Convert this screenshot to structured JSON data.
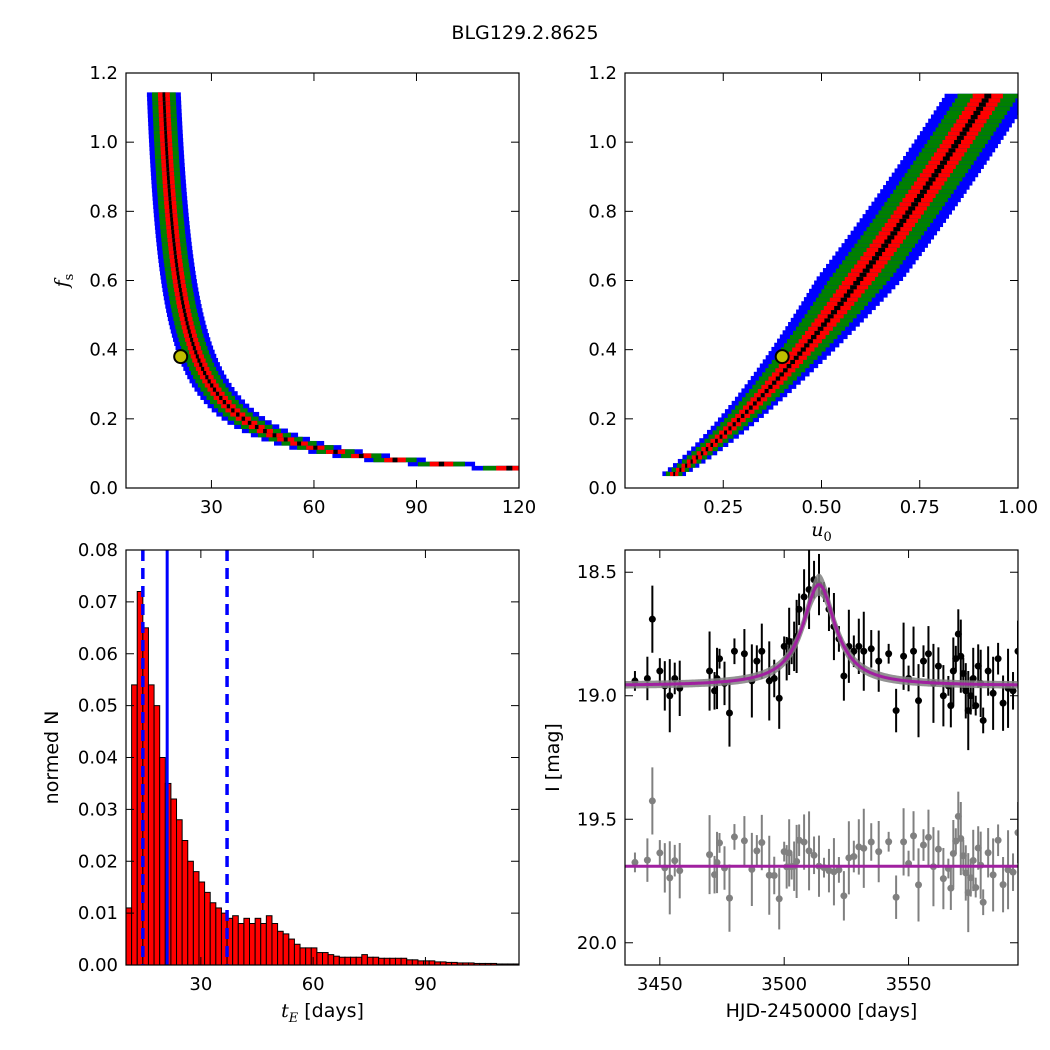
{
  "figure": {
    "title": "BLG129.2.8625"
  },
  "chart_data": [
    {
      "type": "heatmap",
      "panel": "fs_vs_tE",
      "xlabel": "",
      "ylabel": "f_s",
      "xlim": [
        5,
        120
      ],
      "ylim": [
        0.0,
        1.2
      ],
      "xticks": [
        30,
        60,
        90,
        120
      ],
      "yticks": [
        0.0,
        0.2,
        0.4,
        0.6,
        0.8,
        1.0,
        1.2
      ],
      "best_fit": {
        "x": 21,
        "y": 0.38
      },
      "colors": {
        "outer": "#0000ff",
        "mid": "#008000",
        "inner": "#ff0000",
        "core": "#000000",
        "marker": "#bfbf00"
      }
    },
    {
      "type": "heatmap",
      "panel": "fs_vs_u0",
      "xlabel": "u_0",
      "ylabel": "",
      "xlim": [
        0.0,
        1.0
      ],
      "ylim": [
        0.0,
        1.2
      ],
      "xticks": [
        0.25,
        0.5,
        0.75,
        1.0
      ],
      "xtick_labels": [
        "0.25",
        "0.50",
        "0.75",
        "1.00"
      ],
      "yticks": [
        0.0,
        0.2,
        0.4,
        0.6,
        0.8,
        1.0,
        1.2
      ],
      "best_fit": {
        "x": 0.4,
        "y": 0.38
      },
      "colors": {
        "outer": "#0000ff",
        "mid": "#008000",
        "inner": "#ff0000",
        "core": "#000000",
        "marker": "#bfbf00"
      }
    },
    {
      "type": "bar",
      "panel": "tE_histogram",
      "xlabel": "t_E  [days]",
      "ylabel": "normed N",
      "xlim": [
        10,
        115
      ],
      "ylim": [
        0.0,
        0.08
      ],
      "xticks": [
        30,
        60,
        90
      ],
      "yticks": [
        0.0,
        0.01,
        0.02,
        0.03,
        0.04,
        0.05,
        0.06,
        0.07,
        0.08
      ],
      "bin_start": 10,
      "bin_width": 1.5,
      "values": [
        0.011,
        0.054,
        0.072,
        0.065,
        0.054,
        0.05,
        0.04,
        0.035,
        0.032,
        0.028,
        0.024,
        0.02,
        0.018,
        0.016,
        0.014,
        0.012,
        0.011,
        0.01,
        0.009,
        0.0095,
        0.008,
        0.009,
        0.008,
        0.009,
        0.008,
        0.0095,
        0.008,
        0.0065,
        0.006,
        0.005,
        0.004,
        0.0033,
        0.0033,
        0.0033,
        0.0024,
        0.0024,
        0.002,
        0.0017,
        0.0015,
        0.0015,
        0.0015,
        0.0015,
        0.002,
        0.0015,
        0.0015,
        0.0013,
        0.0013,
        0.0013,
        0.0013,
        0.0013,
        0.001,
        0.001,
        0.0008,
        0.0008,
        0.0008,
        0.0006,
        0.0006,
        0.0005,
        0.0005,
        0.0004,
        0.0004,
        0.0004,
        0.0003,
        0.0003,
        0.0003,
        0.0003,
        0.0002,
        0.0002,
        0.0002,
        0.0002
      ],
      "median_line": 21,
      "dashed_lines": [
        14.5,
        37
      ],
      "colors": {
        "bar": "#ff0000",
        "edge": "#000000",
        "lines": "#0000ff"
      }
    },
    {
      "type": "scatter",
      "panel": "light_curve",
      "xlabel": "HJD-2450000 [days]",
      "ylabel": "I [mag]",
      "xlim": [
        3436,
        3594
      ],
      "ylim": [
        20.09,
        18.41
      ],
      "xticks": [
        3450,
        3500,
        3550
      ],
      "yticks": [
        18.5,
        19.0,
        19.5,
        20.0
      ],
      "yticklabels": [
        "18.5",
        "19.0",
        "19.5",
        "20.0"
      ],
      "model": {
        "t0": 3514,
        "baseline": 18.96,
        "peak": 18.55,
        "width": 8
      },
      "residual_offset": 0.73,
      "x": [
        3440,
        3445,
        3447,
        3450,
        3452,
        3454,
        3456,
        3458,
        3470,
        3472,
        3473,
        3474,
        3476,
        3478,
        3480,
        3484,
        3487,
        3489,
        3491,
        3494,
        3496,
        3498,
        3500,
        3501,
        3502,
        3503,
        3504,
        3505,
        3506,
        3508,
        3510,
        3512,
        3514,
        3516,
        3518,
        3520,
        3522,
        3524,
        3526,
        3528,
        3530,
        3532,
        3535,
        3538,
        3542,
        3545,
        3548,
        3550,
        3552,
        3554,
        3556,
        3558,
        3560,
        3562,
        3564,
        3566,
        3567,
        3568,
        3569,
        3570,
        3571,
        3572,
        3573,
        3574,
        3575,
        3576,
        3577,
        3578,
        3579,
        3580,
        3582,
        3584,
        3586,
        3588,
        3590,
        3592,
        3594
      ],
      "y": [
        18.94,
        18.93,
        18.69,
        18.9,
        18.96,
        19.0,
        18.93,
        18.97,
        18.9,
        18.98,
        18.93,
        18.85,
        18.95,
        19.07,
        18.82,
        18.83,
        18.94,
        18.86,
        18.82,
        18.94,
        18.93,
        19.01,
        18.8,
        18.85,
        18.78,
        18.82,
        18.8,
        18.76,
        18.65,
        18.6,
        18.57,
        18.53,
        18.55,
        18.58,
        18.65,
        18.72,
        18.77,
        18.92,
        18.8,
        18.82,
        18.8,
        18.82,
        18.81,
        18.86,
        18.83,
        19.06,
        18.84,
        18.93,
        18.82,
        19.02,
        18.86,
        18.83,
        18.95,
        18.88,
        19.0,
        18.96,
        19.04,
        18.9,
        18.85,
        18.75,
        18.84,
        18.91,
        18.98,
        19.06,
        19.0,
        18.93,
        19.04,
        18.88,
        18.95,
        19.1,
        18.9,
        18.99,
        18.85,
        19.03,
        18.97,
        18.98,
        18.82
      ],
      "colors": {
        "points": "#000000",
        "residuals": "#808080",
        "model": "#a020a0",
        "model_band": "#808080"
      }
    }
  ]
}
